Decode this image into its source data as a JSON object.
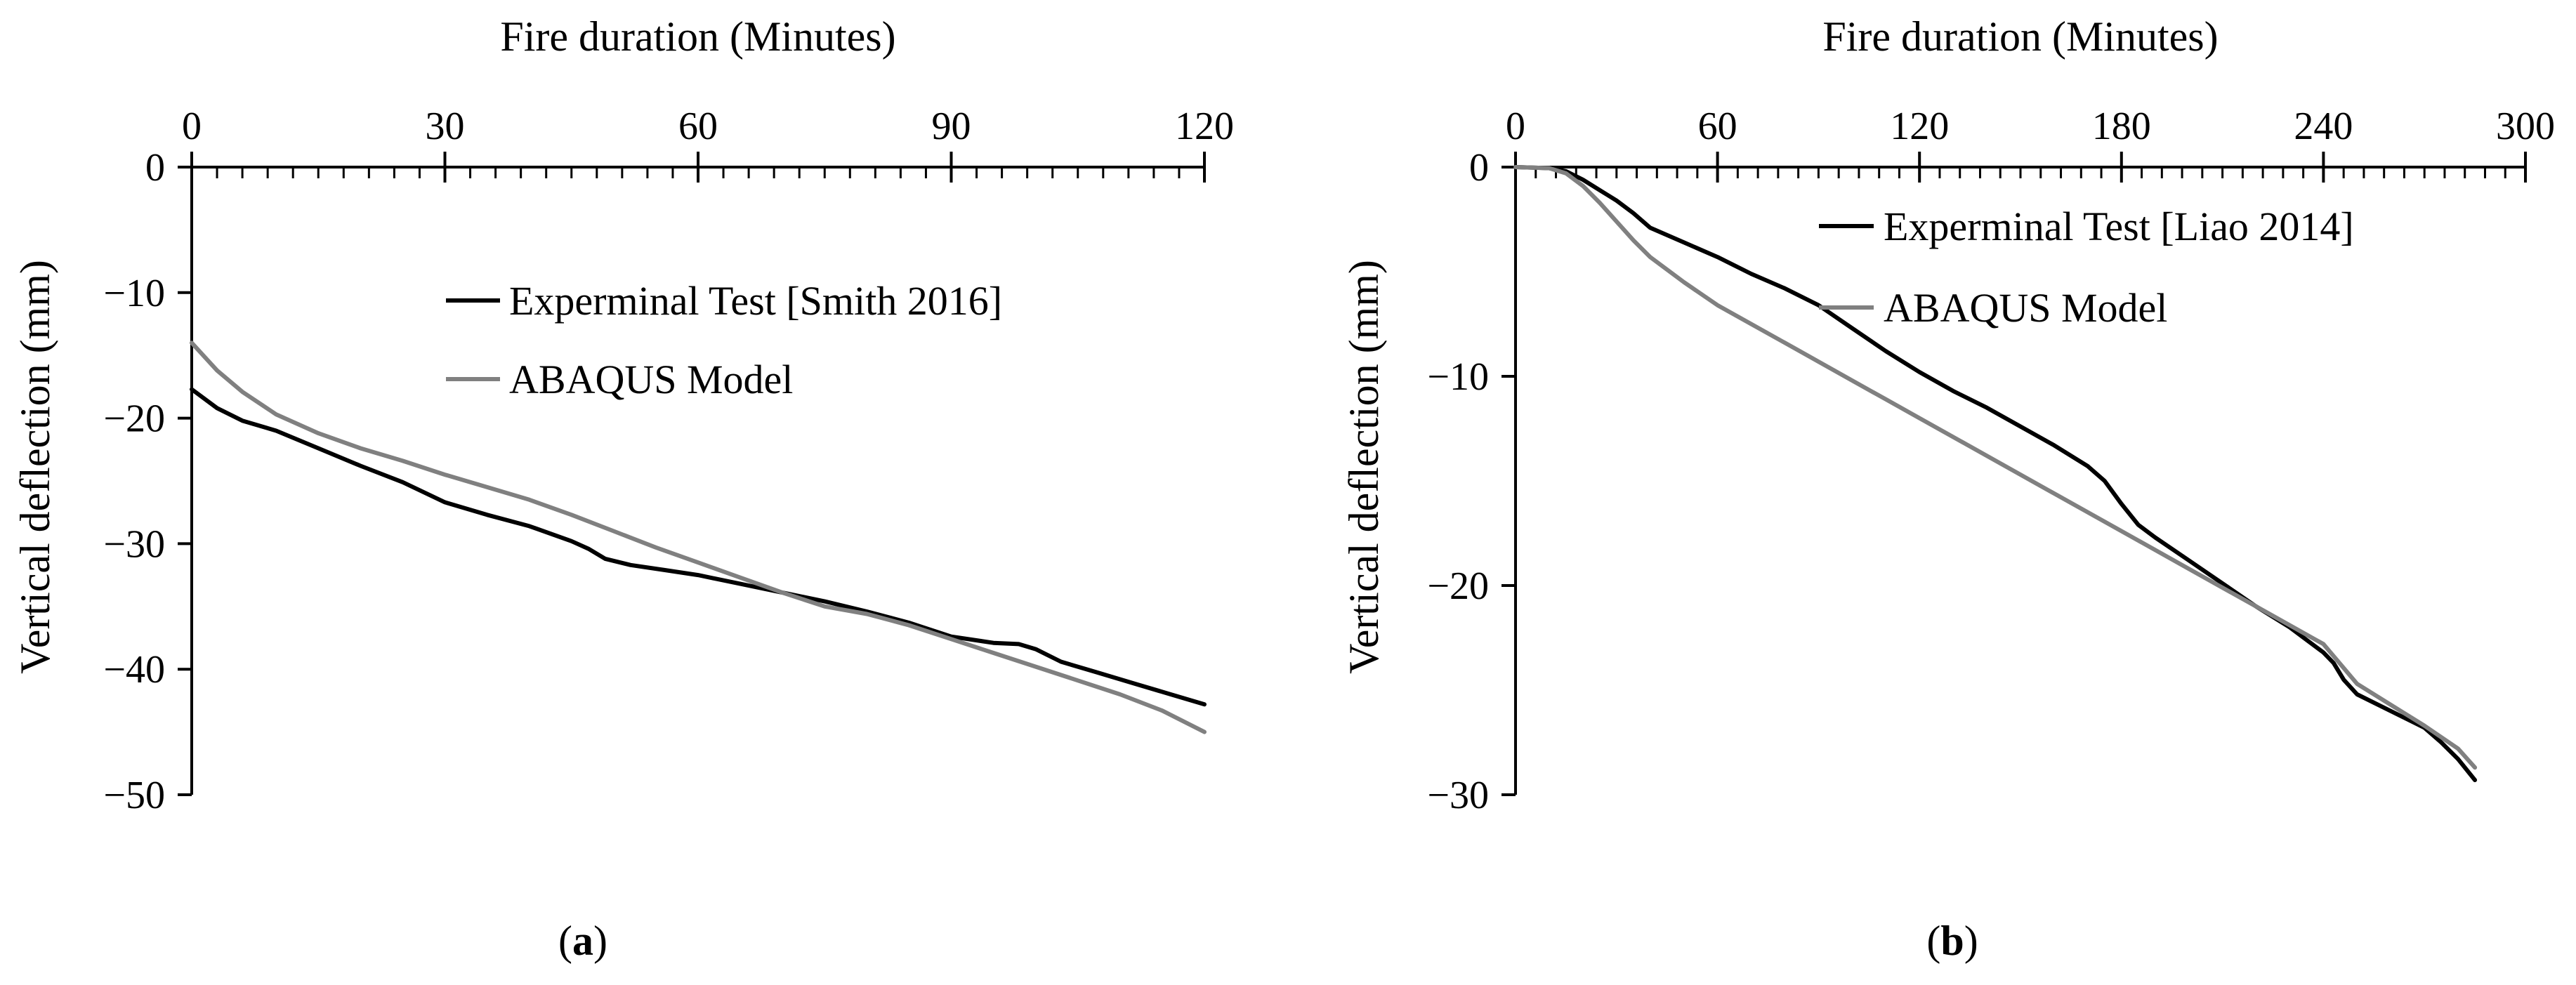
{
  "colors": {
    "experimental": "#000000",
    "model": "#808080",
    "axis": "#000000"
  },
  "chart_data": [
    {
      "type": "line",
      "panel_label": "a",
      "xlabel": "Fire duration (Minutes)",
      "ylabel": "Vertical deflection (mm)",
      "xlim": [
        0,
        120
      ],
      "ylim": [
        -50,
        0
      ],
      "xticks": [
        0,
        30,
        60,
        90,
        120
      ],
      "yticks": [
        0,
        -10,
        -20,
        -30,
        -40,
        -50
      ],
      "x_minor_step": 3,
      "legend_position": "upper-middle",
      "series": [
        {
          "name": "Experminal Test [Smith 2016]",
          "color_key": "experimental",
          "points": [
            [
              0,
              -17.7
            ],
            [
              3,
              -19.2
            ],
            [
              6,
              -20.2
            ],
            [
              10,
              -21.0
            ],
            [
              15,
              -22.4
            ],
            [
              20,
              -23.8
            ],
            [
              25,
              -25.1
            ],
            [
              30,
              -26.7
            ],
            [
              35,
              -27.7
            ],
            [
              40,
              -28.6
            ],
            [
              45,
              -29.8
            ],
            [
              47,
              -30.4
            ],
            [
              49,
              -31.2
            ],
            [
              52,
              -31.7
            ],
            [
              56,
              -32.1
            ],
            [
              60,
              -32.5
            ],
            [
              65,
              -33.2
            ],
            [
              70,
              -33.9
            ],
            [
              75,
              -34.6
            ],
            [
              80,
              -35.4
            ],
            [
              85,
              -36.3
            ],
            [
              90,
              -37.4
            ],
            [
              95,
              -37.9
            ],
            [
              98,
              -38.0
            ],
            [
              100,
              -38.4
            ],
            [
              103,
              -39.4
            ],
            [
              107,
              -40.2
            ],
            [
              112,
              -41.2
            ],
            [
              116,
              -42.0
            ],
            [
              120,
              -42.8
            ]
          ]
        },
        {
          "name": "ABAQUS Model",
          "color_key": "model",
          "points": [
            [
              0,
              -14.0
            ],
            [
              3,
              -16.2
            ],
            [
              6,
              -17.9
            ],
            [
              10,
              -19.7
            ],
            [
              15,
              -21.2
            ],
            [
              20,
              -22.4
            ],
            [
              25,
              -23.4
            ],
            [
              30,
              -24.5
            ],
            [
              35,
              -25.5
            ],
            [
              40,
              -26.5
            ],
            [
              45,
              -27.7
            ],
            [
              50,
              -29.0
            ],
            [
              55,
              -30.3
            ],
            [
              60,
              -31.5
            ],
            [
              65,
              -32.7
            ],
            [
              70,
              -33.9
            ],
            [
              75,
              -35.0
            ],
            [
              80,
              -35.6
            ],
            [
              85,
              -36.5
            ],
            [
              90,
              -37.6
            ],
            [
              95,
              -38.7
            ],
            [
              100,
              -39.8
            ],
            [
              105,
              -40.9
            ],
            [
              110,
              -42.0
            ],
            [
              115,
              -43.3
            ],
            [
              120,
              -45.0
            ]
          ]
        }
      ]
    },
    {
      "type": "line",
      "panel_label": "b",
      "xlabel": "Fire duration (Minutes)",
      "ylabel": "Vertical deflection (mm)",
      "xlim": [
        0,
        300
      ],
      "ylim": [
        -30,
        0
      ],
      "xticks": [
        0,
        60,
        120,
        180,
        240,
        300
      ],
      "yticks": [
        0,
        -10,
        -20,
        -30
      ],
      "x_minor_step": 6,
      "legend_position": "top-right",
      "series": [
        {
          "name": "Experminal Test [Liao 2014]",
          "color_key": "experimental",
          "points": [
            [
              0,
              0
            ],
            [
              10,
              -0.05
            ],
            [
              15,
              -0.2
            ],
            [
              20,
              -0.6
            ],
            [
              25,
              -1.1
            ],
            [
              30,
              -1.6
            ],
            [
              35,
              -2.2
            ],
            [
              40,
              -2.9
            ],
            [
              50,
              -3.6
            ],
            [
              60,
              -4.3
            ],
            [
              70,
              -5.1
            ],
            [
              80,
              -5.8
            ],
            [
              90,
              -6.6
            ],
            [
              100,
              -7.7
            ],
            [
              110,
              -8.8
            ],
            [
              120,
              -9.8
            ],
            [
              130,
              -10.7
            ],
            [
              140,
              -11.5
            ],
            [
              150,
              -12.4
            ],
            [
              160,
              -13.3
            ],
            [
              170,
              -14.3
            ],
            [
              175,
              -15.0
            ],
            [
              180,
              -16.1
            ],
            [
              185,
              -17.1
            ],
            [
              190,
              -17.7
            ],
            [
              200,
              -18.8
            ],
            [
              210,
              -19.9
            ],
            [
              220,
              -21.0
            ],
            [
              230,
              -22.0
            ],
            [
              235,
              -22.6
            ],
            [
              240,
              -23.2
            ],
            [
              243,
              -23.7
            ],
            [
              246,
              -24.5
            ],
            [
              250,
              -25.2
            ],
            [
              260,
              -26.0
            ],
            [
              270,
              -26.8
            ],
            [
              275,
              -27.5
            ],
            [
              280,
              -28.3
            ],
            [
              285,
              -29.3
            ]
          ]
        },
        {
          "name": "ABAQUS Model",
          "color_key": "model",
          "points": [
            [
              0,
              0
            ],
            [
              10,
              -0.05
            ],
            [
              15,
              -0.3
            ],
            [
              20,
              -0.9
            ],
            [
              25,
              -1.7
            ],
            [
              30,
              -2.6
            ],
            [
              35,
              -3.5
            ],
            [
              40,
              -4.3
            ],
            [
              50,
              -5.5
            ],
            [
              60,
              -6.6
            ],
            [
              70,
              -7.5
            ],
            [
              80,
              -8.4
            ],
            [
              90,
              -9.3
            ],
            [
              100,
              -10.2
            ],
            [
              110,
              -11.1
            ],
            [
              120,
              -12.0
            ],
            [
              140,
              -13.8
            ],
            [
              160,
              -15.6
            ],
            [
              180,
              -17.4
            ],
            [
              200,
              -19.2
            ],
            [
              220,
              -21.0
            ],
            [
              240,
              -22.8
            ],
            [
              250,
              -24.7
            ],
            [
              260,
              -25.7
            ],
            [
              270,
              -26.7
            ],
            [
              280,
              -27.8
            ],
            [
              285,
              -28.7
            ]
          ]
        }
      ]
    }
  ]
}
